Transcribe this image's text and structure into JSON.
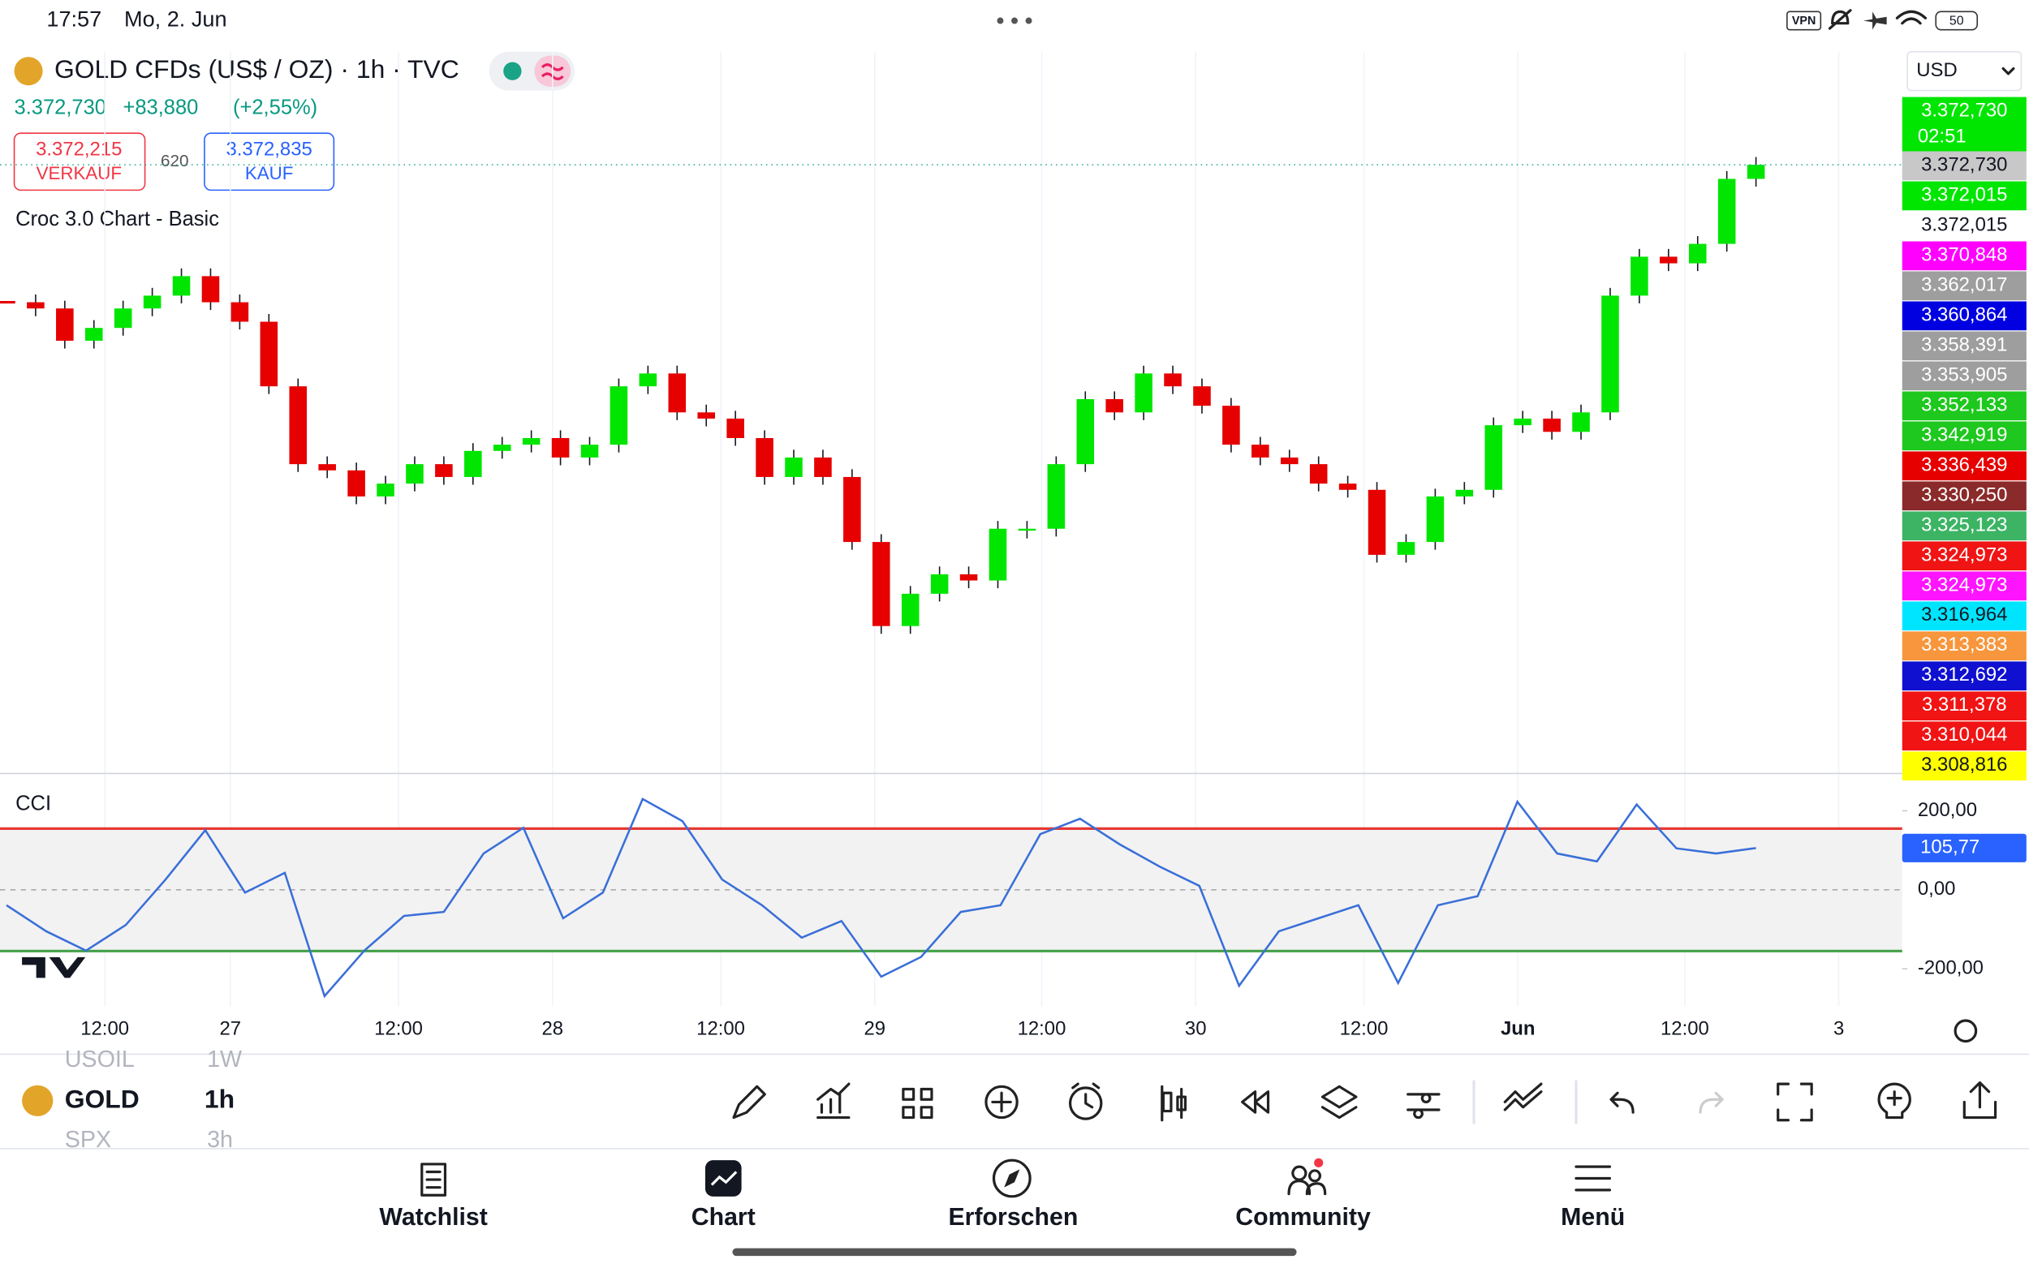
{
  "status_bar": {
    "time": "17:57",
    "date": "Mo, 2. Jun",
    "vpn": "VPN",
    "battery": "50"
  },
  "header": {
    "title": "GOLD CFDs (US$ / OZ) · 1h · TVC",
    "last_price": "3.372,730",
    "change": "+83,880",
    "change_pct": "(+2,55%)"
  },
  "trade": {
    "sell_price": "3.372,215",
    "sell_label": "VERKAUF",
    "spread": "620",
    "buy_price": "3.372,835",
    "buy_label": "KAUF"
  },
  "indicator_name": "Croc 3.0 Chart - Basic",
  "currency": "USD",
  "chart_data": [
    {
      "type": "candlestick",
      "up_color": "#00e600",
      "down_color": "#e60000",
      "closes": [
        3339.5,
        3338.0,
        3330.2,
        3333.3,
        3338.0,
        3341.1,
        3345.8,
        3339.5,
        3334.8,
        3319.2,
        3300.4,
        3298.9,
        3292.6,
        3295.7,
        3300.4,
        3297.3,
        3303.6,
        3305.1,
        3306.7,
        3302.0,
        3305.1,
        3319.2,
        3322.3,
        3312.9,
        3311.4,
        3306.7,
        3297.3,
        3302.0,
        3297.3,
        3281.6,
        3261.3,
        3269.1,
        3273.8,
        3272.3,
        3284.8,
        3284.8,
        3300.4,
        3316.1,
        3312.9,
        3322.3,
        3319.2,
        3314.5,
        3305.1,
        3302.0,
        3300.4,
        3295.7,
        3294.2,
        3278.5,
        3281.6,
        3292.6,
        3294.2,
        3309.8,
        3311.4,
        3308.2,
        3312.9,
        3341.1,
        3350.5,
        3348.9,
        3353.6,
        3369.3,
        3372.7
      ],
      "ylim": [
        3226,
        3400
      ],
      "x_labels": [
        "12:00",
        "27",
        "12:00",
        "28",
        "12:00",
        "29",
        "12:00",
        "30",
        "12:00",
        "Jun",
        "12:00",
        "3"
      ],
      "countdown": "02:51",
      "price_tags": [
        {
          "label": "3.372,730",
          "color": "#00e600",
          "text_color": "#ffffff"
        },
        {
          "label": "3.372,730",
          "color": "#c8c8c8",
          "text_color": "#131722"
        },
        {
          "label": "3.372,015",
          "color": "#00e600",
          "text_color": "#ffffff"
        },
        {
          "label": "3.372,015",
          "color": "#ffffff",
          "text_color": "#131722"
        },
        {
          "label": "3.370,848",
          "color": "#ff00ff",
          "text_color": "#ffffff"
        },
        {
          "label": "3.362,017",
          "color": "#9e9e9e",
          "text_color": "#ffffff"
        },
        {
          "label": "3.360,864",
          "color": "#0000e0",
          "text_color": "#ffffff"
        },
        {
          "label": "3.358,391",
          "color": "#9e9e9e",
          "text_color": "#ffffff"
        },
        {
          "label": "3.353,905",
          "color": "#9e9e9e",
          "text_color": "#ffffff"
        },
        {
          "label": "3.352,133",
          "color": "#1ec81e",
          "text_color": "#ffffff"
        },
        {
          "label": "3.342,919",
          "color": "#1ec81e",
          "text_color": "#ffffff"
        },
        {
          "label": "3.336,439",
          "color": "#e60000",
          "text_color": "#ffffff"
        },
        {
          "label": "3.330,250",
          "color": "#8b2a2a",
          "text_color": "#ffffff"
        },
        {
          "label": "3.325,123",
          "color": "#3cb464",
          "text_color": "#ffffff"
        },
        {
          "label": "3.324,973",
          "color": "#f01414",
          "text_color": "#ffffff"
        },
        {
          "label": "3.324,973",
          "color": "#ff14ff",
          "text_color": "#ffffff"
        },
        {
          "label": "3.316,964",
          "color": "#00e5ff",
          "text_color": "#131722"
        },
        {
          "label": "3.313,383",
          "color": "#f7963c",
          "text_color": "#ffffff"
        },
        {
          "label": "3.312,692",
          "color": "#1010d0",
          "text_color": "#ffffff"
        },
        {
          "label": "3.311,378",
          "color": "#f01414",
          "text_color": "#ffffff"
        },
        {
          "label": "3.310,044",
          "color": "#f01414",
          "text_color": "#ffffff"
        },
        {
          "label": "3.308,816",
          "color": "#ffff00",
          "text_color": "#131722"
        }
      ]
    },
    {
      "type": "line",
      "name": "CCI",
      "color": "#3a6fd8",
      "values": [
        -39,
        -105,
        -154,
        -89,
        26,
        151,
        -7,
        43,
        -269,
        -154,
        -66,
        -56,
        92,
        157,
        -72,
        -7,
        230,
        174,
        26,
        -39,
        -121,
        -79,
        -220,
        -170,
        -56,
        -39,
        141,
        180,
        115,
        59,
        10,
        -243,
        -105,
        -72,
        -39,
        -236,
        -39,
        -16,
        223,
        92,
        72,
        216,
        105,
        92,
        105.77
      ],
      "ylim": [
        -295,
        288
      ],
      "yticks": [
        {
          "value": 200,
          "label": "200,00"
        },
        {
          "value": 0,
          "label": "0,00"
        },
        {
          "value": -200,
          "label": "-200,00"
        }
      ],
      "upper_band": 155,
      "lower_band": -155,
      "current_label": "105,77"
    }
  ],
  "symbols": [
    {
      "symbol": "USOIL",
      "interval": "1W"
    },
    {
      "symbol": "GOLD",
      "interval": "1h"
    },
    {
      "symbol": "SPX",
      "interval": "3h"
    }
  ],
  "nav": [
    "Watchlist",
    "Chart",
    "Erforschen",
    "Community",
    "Menü"
  ]
}
